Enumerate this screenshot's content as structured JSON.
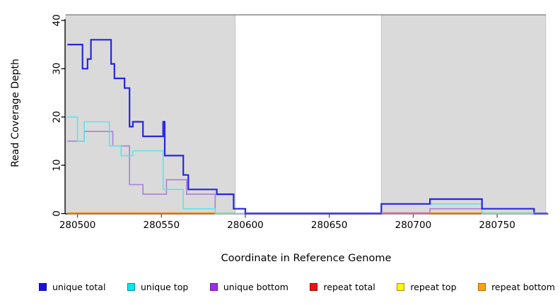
{
  "axes": {
    "x_label": "Coordinate in Reference Genome",
    "y_label": "Read Coverage Depth",
    "x_ticks": [
      280500,
      280550,
      280600,
      280650,
      280700,
      280750
    ],
    "y_ticks": [
      0,
      10,
      20,
      30,
      40
    ],
    "x_range": [
      280493,
      280781
    ],
    "y_range": [
      0,
      41
    ]
  },
  "chart_data": {
    "type": "line",
    "step": true,
    "title": "",
    "xlabel": "Coordinate in Reference Genome",
    "ylabel": "Read Coverage Depth",
    "xlim": [
      280493,
      280781
    ],
    "ylim": [
      0,
      41
    ],
    "grid": false,
    "legend_position": "bottom",
    "shaded_regions": [
      {
        "name": "repeat-region-left",
        "from": 280493,
        "to": 280594,
        "fill": "#DADADA",
        "edge": "#BBBBBB"
      },
      {
        "name": "repeat-region-right",
        "from": 280681,
        "to": 280779,
        "fill": "#DADADA",
        "edge": "#BBBBBB"
      }
    ],
    "top_boundary_line": {
      "from": 280493,
      "to": 280779,
      "color": "#8A8A8A"
    },
    "series": [
      {
        "name": "unique total",
        "color": "#2626DE",
        "width": 2.2,
        "points": [
          [
            280494,
            35
          ],
          [
            280503,
            30
          ],
          [
            280506,
            32
          ],
          [
            280508,
            36
          ],
          [
            280520,
            31
          ],
          [
            280522,
            28
          ],
          [
            280528,
            26
          ],
          [
            280531,
            18
          ],
          [
            280533,
            19
          ],
          [
            280539,
            16
          ],
          [
            280551,
            19
          ],
          [
            280552,
            12
          ],
          [
            280563,
            8
          ],
          [
            280566,
            5
          ],
          [
            280583,
            4
          ],
          [
            280593,
            1
          ],
          [
            280600,
            0
          ],
          [
            280681,
            2
          ],
          [
            280710,
            3
          ],
          [
            280741,
            1
          ],
          [
            280772,
            0
          ],
          [
            280780,
            0
          ]
        ]
      },
      {
        "name": "unique top",
        "color": "#5FE3EA",
        "width": 1.6,
        "points": [
          [
            280494,
            20
          ],
          [
            280500,
            15
          ],
          [
            280504,
            19
          ],
          [
            280519,
            14
          ],
          [
            280526,
            12
          ],
          [
            280533,
            13
          ],
          [
            280551,
            5
          ],
          [
            280563,
            1
          ],
          [
            280582,
            0
          ],
          [
            280681,
            2
          ],
          [
            280741,
            0
          ],
          [
            280780,
            0
          ]
        ]
      },
      {
        "name": "unique bottom",
        "color": "#A77FD8",
        "width": 1.6,
        "points": [
          [
            280494,
            15
          ],
          [
            280504,
            17
          ],
          [
            280521,
            14
          ],
          [
            280531,
            6
          ],
          [
            280539,
            4
          ],
          [
            280553,
            7
          ],
          [
            280565,
            4
          ],
          [
            280582,
            0
          ],
          [
            280710,
            1
          ],
          [
            280741,
            0
          ],
          [
            280780,
            0
          ]
        ]
      },
      {
        "name": "repeat total",
        "color": "#DD2222",
        "width": 1.4,
        "points": [
          [
            280494,
            0
          ],
          [
            280780,
            0
          ]
        ]
      },
      {
        "name": "repeat top",
        "color": "#EDED22",
        "width": 1.4,
        "points": [
          [
            280494,
            0
          ],
          [
            280780,
            0
          ]
        ]
      },
      {
        "name": "repeat bottom",
        "color": "#FF8C00",
        "width": 1.6,
        "points": [
          [
            280494,
            0
          ],
          [
            280780,
            0
          ]
        ]
      }
    ],
    "baseline_overlays": [
      {
        "name": "repeat-bottom-visible-left",
        "from": 280494,
        "to": 280582,
        "color": "#FF8C00"
      },
      {
        "name": "top-lines-blend-left",
        "from": 280582,
        "to": 280594,
        "color": "#8FD7A0"
      },
      {
        "name": "zero-line-middle",
        "from": 280600,
        "to": 280681,
        "color": "#5B50E0"
      },
      {
        "name": "repeat-total-visible",
        "from": 280681,
        "to": 280710,
        "color": "#D2649B"
      },
      {
        "name": "repeat-bottom-visible-right",
        "from": 280710,
        "to": 280741,
        "color": "#FF8C00"
      },
      {
        "name": "top-lines-blend-right",
        "from": 280741,
        "to": 280772,
        "color": "#8FD7A0"
      },
      {
        "name": "zero-line-right",
        "from": 280772,
        "to": 280780,
        "color": "#7A68E8"
      }
    ]
  },
  "legend": {
    "items": [
      {
        "label": "unique total",
        "fill": "#1414E6",
        "border": "#0A0A99"
      },
      {
        "label": "unique top",
        "fill": "#00E8F0",
        "border": "#0B8F96"
      },
      {
        "label": "unique bottom",
        "fill": "#A429E8",
        "border": "#6A1C99"
      },
      {
        "label": "repeat total",
        "fill": "#F50F0F",
        "border": "#8F0A0A"
      },
      {
        "label": "repeat top",
        "fill": "#F8F800",
        "border": "#B8860B"
      },
      {
        "label": "repeat bottom",
        "fill": "#FFA010",
        "border": "#A86A0A"
      }
    ]
  }
}
